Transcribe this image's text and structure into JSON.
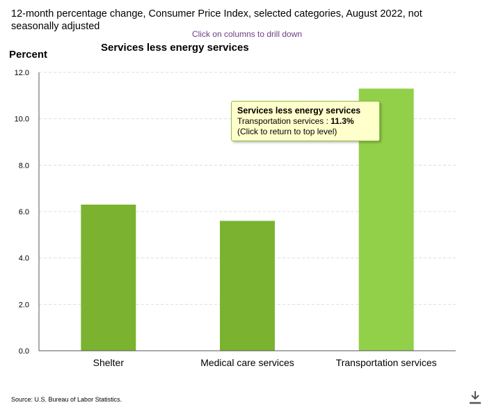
{
  "header": {
    "title": "12-month percentage change, Consumer Price Index, selected categories, August 2022, not seasonally adjusted",
    "hint": "Click on columns to drill down"
  },
  "chart_data": {
    "type": "bar",
    "title": "Services less energy services",
    "ylabel": "Percent",
    "xlabel": "",
    "categories": [
      "Shelter",
      "Medical care services",
      "Transportation services"
    ],
    "values": [
      6.3,
      5.6,
      11.3
    ],
    "highlight_index": 2,
    "ylim": [
      0,
      12
    ],
    "yticks": [
      "0.0",
      "2.0",
      "4.0",
      "6.0",
      "8.0",
      "10.0",
      "12.0"
    ],
    "grid": true,
    "colors": {
      "bar": "#7bb331",
      "bar_highlight": "#93d04a",
      "grid": "#dddddd"
    }
  },
  "tooltip": {
    "title": "Services less energy services",
    "label": "Transportation services :",
    "value": "11.3%",
    "note": "(Click to return to top level)"
  },
  "footer": {
    "source": "Source: U.S. Bureau of Labor Statistics.",
    "download_icon": "download-icon"
  }
}
